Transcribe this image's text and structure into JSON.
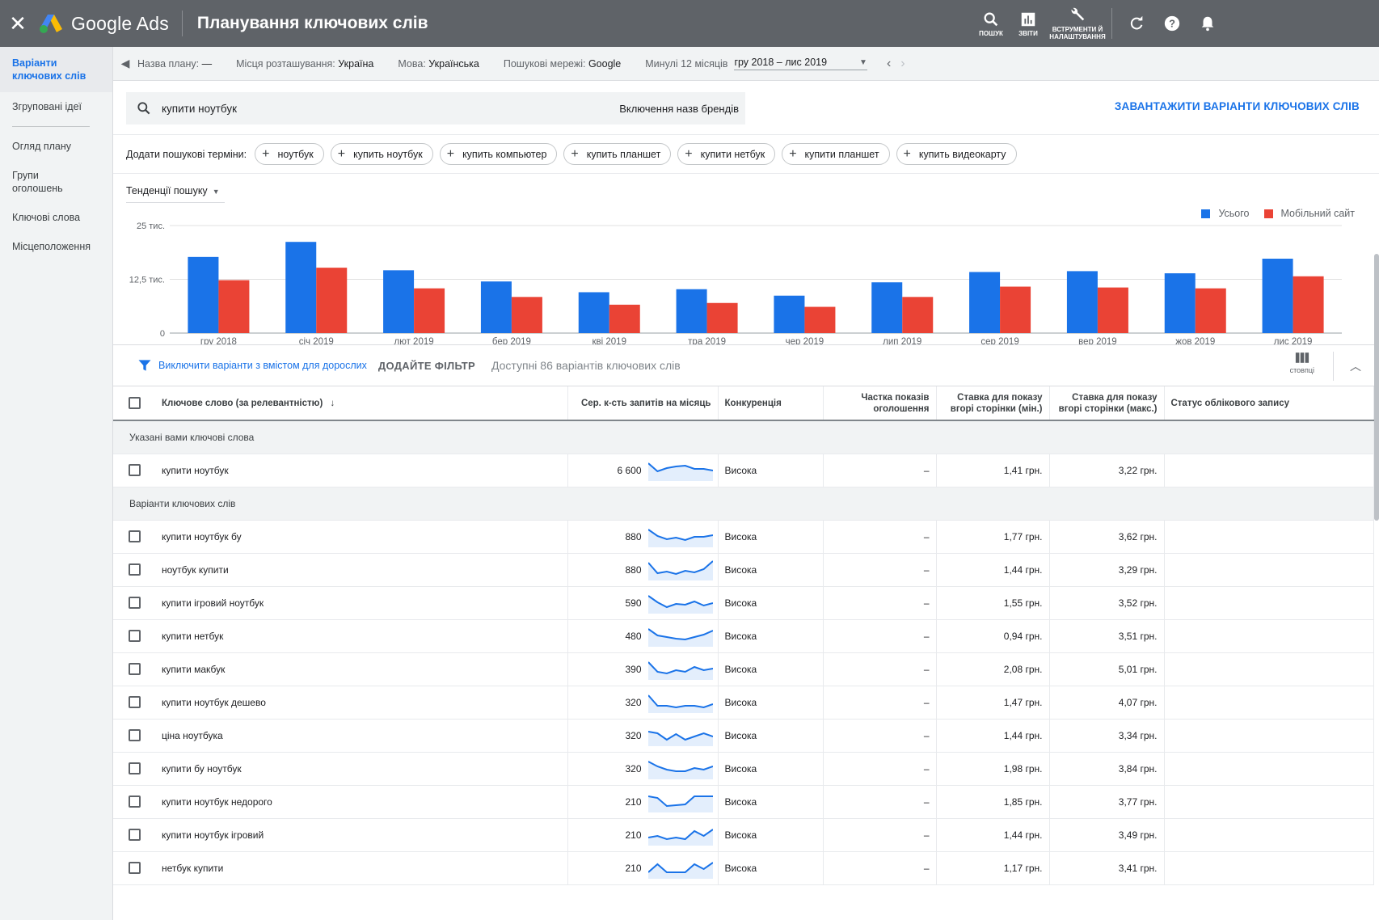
{
  "app": {
    "close_icon": "close-icon",
    "logo_text": "Google Ads",
    "page_title": "Планування ключових слів"
  },
  "topnav": [
    {
      "label": "ПОШУК",
      "icon": "search-icon"
    },
    {
      "label": "ЗВІТИ",
      "icon": "reports-icon"
    },
    {
      "label": "ВСТРУМЕНТИ Й НАЛАШТУВАННЯ",
      "icon": "wrench-icon"
    }
  ],
  "sidebar": {
    "items": [
      {
        "label": "Варіанти ключових слів",
        "active": true
      },
      {
        "label": "Згруповані ідеї"
      },
      {
        "label": "Огляд плану"
      },
      {
        "label": "Групи оголошень"
      },
      {
        "label": "Ключові слова"
      },
      {
        "label": "Місцеположення"
      }
    ]
  },
  "plan": {
    "name_label": "Назва плану:",
    "name_value": "—",
    "location_label": "Місця розташування:",
    "location_value": "Україна",
    "language_label": "Мова:",
    "language_value": "Українська",
    "network_label": "Пошукові мережі:",
    "network_value": "Google",
    "period_label": "Минулі 12 місяців",
    "period_value": "гру 2018 – лис 2019"
  },
  "search": {
    "query": "купити ноутбук",
    "brand_toggle": "Включення назв брендів",
    "download_label": "ЗАВАНТАЖИТИ ВАРІАНТИ КЛЮЧОВИХ СЛІВ"
  },
  "add_terms": {
    "label": "Додати пошукові терміни:",
    "chips": [
      "ноутбук",
      "купить ноутбук",
      "купить компьютер",
      "купить планшет",
      "купити нетбук",
      "купити планшет",
      "купить видеокарту"
    ]
  },
  "trend": {
    "selector": "Тенденції пошуку"
  },
  "chart_data": {
    "type": "bar",
    "categories": [
      "гру 2018",
      "січ 2019",
      "лют 2019",
      "бер 2019",
      "кві 2019",
      "тра 2019",
      "чер 2019",
      "лип 2019",
      "сер 2019",
      "вер 2019",
      "жов 2019",
      "лис 2019"
    ],
    "series": [
      {
        "name": "Усього",
        "color": "#1a73e8",
        "values": [
          17700,
          21200,
          14600,
          12000,
          9500,
          10200,
          8700,
          11800,
          14200,
          14400,
          13900,
          17300
        ]
      },
      {
        "name": "Мобільний сайт",
        "color": "#ea4335",
        "values": [
          12300,
          15200,
          10400,
          8400,
          6600,
          7000,
          6100,
          8400,
          10800,
          10600,
          10400,
          13200
        ]
      }
    ],
    "yticks": [
      "0",
      "12,5 тис.",
      "25 тис."
    ],
    "ylim": [
      0,
      25000
    ]
  },
  "filter": {
    "adult_label": "Виключити варіанти з вмістом для дорослих",
    "add_filter": "ДОДАЙТЕ ФІЛЬТР",
    "available": "Доступні 86 варіантів ключових слів",
    "columns_label": "стовпці"
  },
  "table": {
    "headers": {
      "keyword": "Ключове слово (за релевантністю)",
      "volume": "Сер. к-сть запитів на місяць",
      "competition": "Конкуренція",
      "share": "Частка показів оголошення",
      "bid_low": "Ставка для показу вгорі сторінки (мін.)",
      "bid_high": "Ставка для показу вгорі сторінки (макс.)",
      "status": "Статус облікового запису"
    },
    "group_provided": "Указані вами ключові слова",
    "group_ideas": "Варіанти ключових слів",
    "provided": [
      {
        "keyword": "купити ноутбук",
        "volume": "6 600",
        "competition": "Висока",
        "share": "–",
        "bid_low": "1,41 грн.",
        "bid_high": "3,22 грн.",
        "spark": [
          22,
          12,
          16,
          18,
          19,
          15,
          15,
          13
        ]
      }
    ],
    "ideas": [
      {
        "keyword": "купити ноутбук бу",
        "volume": "880",
        "competition": "Висока",
        "share": "–",
        "bid_low": "1,77 грн.",
        "bid_high": "3,62 грн.",
        "spark": [
          22,
          14,
          10,
          12,
          9,
          13,
          13,
          15
        ]
      },
      {
        "keyword": "ноутбук купити",
        "volume": "880",
        "competition": "Висока",
        "share": "–",
        "bid_low": "1,44 грн.",
        "bid_high": "3,29 грн.",
        "spark": [
          22,
          9,
          11,
          8,
          12,
          10,
          14,
          24
        ]
      },
      {
        "keyword": "купити ігровий ноутбук",
        "volume": "590",
        "competition": "Висока",
        "share": "–",
        "bid_low": "1,55 грн.",
        "bid_high": "3,52 грн.",
        "spark": [
          22,
          14,
          8,
          12,
          11,
          15,
          10,
          13
        ]
      },
      {
        "keyword": "купити нетбук",
        "volume": "480",
        "competition": "Висока",
        "share": "–",
        "bid_low": "0,94 грн.",
        "bid_high": "3,51 грн.",
        "spark": [
          22,
          14,
          12,
          10,
          9,
          12,
          15,
          20
        ]
      },
      {
        "keyword": "купити макбук",
        "volume": "390",
        "competition": "Висока",
        "share": "–",
        "bid_low": "2,08 грн.",
        "bid_high": "5,01 грн.",
        "spark": [
          22,
          10,
          8,
          12,
          10,
          16,
          12,
          14
        ]
      },
      {
        "keyword": "купити ноутбук дешево",
        "volume": "320",
        "competition": "Висока",
        "share": "–",
        "bid_low": "1,47 грн.",
        "bid_high": "4,07 грн.",
        "spark": [
          22,
          9,
          9,
          7,
          9,
          9,
          7,
          11
        ]
      },
      {
        "keyword": "ціна ноутбука",
        "volume": "320",
        "competition": "Висока",
        "share": "–",
        "bid_low": "1,44 грн.",
        "bid_high": "3,34 грн.",
        "spark": [
          18,
          16,
          8,
          15,
          8,
          12,
          16,
          12
        ]
      },
      {
        "keyword": "купити бу ноутбук",
        "volume": "320",
        "competition": "Висока",
        "share": "–",
        "bid_low": "1,98 грн.",
        "bid_high": "3,84 грн.",
        "spark": [
          22,
          16,
          12,
          10,
          10,
          14,
          12,
          16
        ]
      },
      {
        "keyword": "купити ноутбук недорого",
        "volume": "210",
        "competition": "Висока",
        "share": "–",
        "bid_low": "1,85 грн.",
        "bid_high": "3,77 грн.",
        "spark": [
          20,
          18,
          8,
          9,
          10,
          20,
          20,
          20
        ]
      },
      {
        "keyword": "купити ноутбук ігровий",
        "volume": "210",
        "competition": "Висока",
        "share": "–",
        "bid_low": "1,44 грн.",
        "bid_high": "3,49 грн.",
        "spark": [
          10,
          12,
          8,
          10,
          8,
          18,
          12,
          20
        ]
      },
      {
        "keyword": "нетбук купити",
        "volume": "210",
        "competition": "Висока",
        "share": "–",
        "bid_low": "1,17 грн.",
        "bid_high": "3,41 грн.",
        "spark": [
          8,
          18,
          8,
          8,
          8,
          18,
          12,
          20
        ]
      }
    ]
  }
}
